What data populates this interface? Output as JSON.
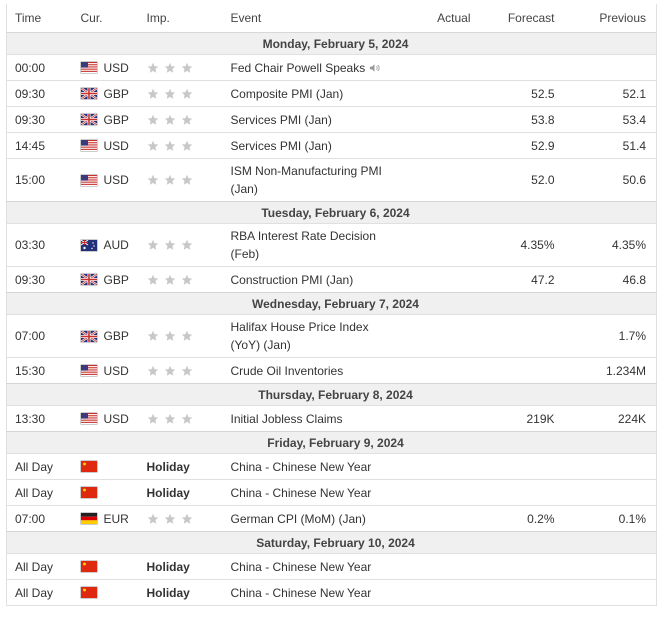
{
  "headers": {
    "time": "Time",
    "cur": "Cur.",
    "imp": "Imp.",
    "event": "Event",
    "actual": "Actual",
    "forecast": "Forecast",
    "previous": "Previous"
  },
  "days": [
    {
      "date": "Monday, February 5, 2024",
      "rows": [
        {
          "time": "00:00",
          "flag": "us",
          "cur": "USD",
          "imp": "stars",
          "event": "Fed Chair Powell Speaks",
          "speech": true,
          "actual": "",
          "forecast": "",
          "previous": ""
        },
        {
          "time": "09:30",
          "flag": "gb",
          "cur": "GBP",
          "imp": "stars",
          "event": "Composite PMI (Jan)",
          "actual": "",
          "forecast": "52.5",
          "previous": "52.1"
        },
        {
          "time": "09:30",
          "flag": "gb",
          "cur": "GBP",
          "imp": "stars",
          "event": "Services PMI (Jan)",
          "actual": "",
          "forecast": "53.8",
          "previous": "53.4"
        },
        {
          "time": "14:45",
          "flag": "us",
          "cur": "USD",
          "imp": "stars",
          "event": "Services PMI (Jan)",
          "actual": "",
          "forecast": "52.9",
          "previous": "51.4"
        },
        {
          "time": "15:00",
          "flag": "us",
          "cur": "USD",
          "imp": "stars",
          "event": "ISM Non-Manufacturing PMI (Jan)",
          "tall": true,
          "actual": "",
          "forecast": "52.0",
          "previous": "50.6"
        }
      ]
    },
    {
      "date": "Tuesday, February 6, 2024",
      "rows": [
        {
          "time": "03:30",
          "flag": "au",
          "cur": "AUD",
          "imp": "stars",
          "event": "RBA Interest Rate Decision (Feb)",
          "tall": true,
          "actual": "",
          "forecast": "4.35%",
          "previous": "4.35%"
        },
        {
          "time": "09:30",
          "flag": "gb",
          "cur": "GBP",
          "imp": "stars",
          "event": "Construction PMI (Jan)",
          "actual": "",
          "forecast": "47.2",
          "previous": "46.8"
        }
      ]
    },
    {
      "date": "Wednesday, February 7, 2024",
      "rows": [
        {
          "time": "07:00",
          "flag": "gb",
          "cur": "GBP",
          "imp": "stars",
          "event": "Halifax House Price Index (YoY) (Jan)",
          "tall": true,
          "actual": "",
          "forecast": "",
          "previous": "1.7%"
        },
        {
          "time": "15:30",
          "flag": "us",
          "cur": "USD",
          "imp": "stars",
          "event": "Crude Oil Inventories",
          "actual": "",
          "forecast": "",
          "previous": "1.234M"
        }
      ]
    },
    {
      "date": "Thursday, February 8, 2024",
      "rows": [
        {
          "time": "13:30",
          "flag": "us",
          "cur": "USD",
          "imp": "stars",
          "event": "Initial Jobless Claims",
          "actual": "",
          "forecast": "219K",
          "previous": "224K"
        }
      ]
    },
    {
      "date": "Friday, February 9, 2024",
      "rows": [
        {
          "time": "All Day",
          "flag": "cn",
          "cur": "",
          "imp": "Holiday",
          "event": "China - Chinese New Year",
          "actual": "",
          "forecast": "",
          "previous": ""
        },
        {
          "time": "All Day",
          "flag": "cn",
          "cur": "",
          "imp": "Holiday",
          "event": "China - Chinese New Year",
          "actual": "",
          "forecast": "",
          "previous": ""
        },
        {
          "time": "07:00",
          "flag": "de",
          "cur": "EUR",
          "imp": "stars",
          "event": "German CPI (MoM) (Jan)",
          "actual": "",
          "forecast": "0.2%",
          "previous": "0.1%"
        }
      ]
    },
    {
      "date": "Saturday, February 10, 2024",
      "rows": [
        {
          "time": "All Day",
          "flag": "cn",
          "cur": "",
          "imp": "Holiday",
          "event": "China - Chinese New Year",
          "actual": "",
          "forecast": "",
          "previous": ""
        },
        {
          "time": "All Day",
          "flag": "cn",
          "cur": "",
          "imp": "Holiday",
          "event": "China - Chinese New Year",
          "actual": "",
          "forecast": "",
          "previous": ""
        }
      ]
    }
  ],
  "colors": {
    "star": "#c8c8c8",
    "row_border": "#e0e0e0",
    "date_bg": "#f0f0f0"
  }
}
